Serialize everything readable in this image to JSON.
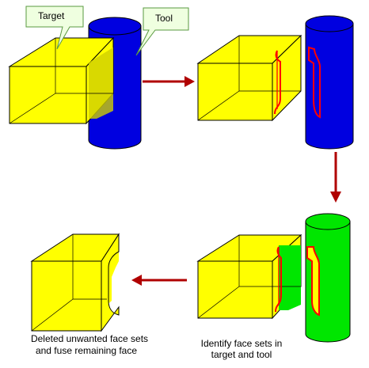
{
  "labels": {
    "target": "Target",
    "tool": "Tool",
    "caption_identify_line1": "Identify face sets in",
    "caption_identify_line2": "target and tool",
    "caption_deleted_line1": "Deleted unwanted face sets",
    "caption_deleted_line2": "and fuse remaining face"
  },
  "colors": {
    "box_fill": "#ffff00",
    "tool_blue": "#0000e0",
    "tool_green": "#00e600",
    "arrow": "#b00000",
    "intersection_outline": "#ff0000",
    "callout_fill": "#efffe0",
    "callout_stroke": "#5a9a40"
  }
}
